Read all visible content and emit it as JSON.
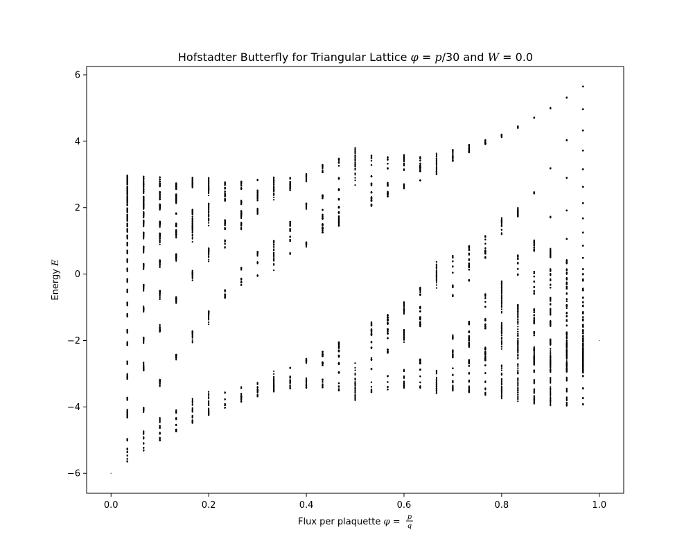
{
  "chart_data": {
    "type": "scatter",
    "title_parts": [
      {
        "text": "Hofstadter Butterfly for Triangular Lattice ",
        "math": false
      },
      {
        "text": "φ",
        "math": true
      },
      {
        "text": " = ",
        "math": false
      },
      {
        "text": "p",
        "math": true
      },
      {
        "text": "/30 and ",
        "math": false
      },
      {
        "text": "W",
        "math": true
      },
      {
        "text": " = 0.0",
        "math": false
      }
    ],
    "xlabel_parts": [
      {
        "text": "Flux per plaquette ",
        "math": false
      },
      {
        "text": "φ",
        "math": true
      },
      {
        "text": " = ",
        "math": false
      }
    ],
    "xlabel_fraction": {
      "numerator": "p",
      "denominator": "q"
    },
    "ylabel_parts": [
      {
        "text": "Energy ",
        "math": false
      },
      {
        "text": "E",
        "math": true
      }
    ],
    "xlim": [
      -0.05,
      1.05
    ],
    "ylim": [
      -6.6,
      6.25
    ],
    "xticks": [
      0.0,
      0.2,
      0.4,
      0.6,
      0.8,
      1.0
    ],
    "xtick_labels": [
      "0.0",
      "0.2",
      "0.4",
      "0.6",
      "0.8",
      "1.0"
    ],
    "yticks": [
      -6,
      -4,
      -2,
      0,
      2,
      4,
      6
    ],
    "ytick_labels": [
      "−6",
      "−4",
      "−2",
      "0",
      "2",
      "4",
      "6"
    ],
    "grid": false,
    "marker_color": "#000000",
    "series": [
      {
        "x": [
          0.0,
          1.0
        ],
        "y": [
          -6.0,
          -2.0
        ]
      }
    ],
    "flux_denominator": 30,
    "energy_columns_note": "Energy eigenvalues of the triangular-lattice Harper equation for phi = p/30, p = 1..29"
  }
}
